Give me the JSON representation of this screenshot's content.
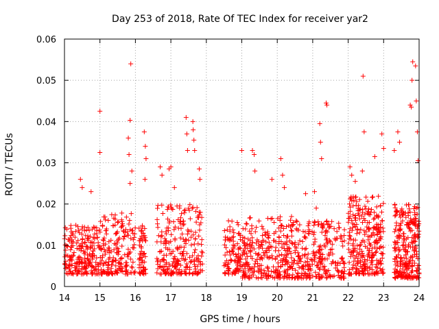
{
  "chart_data": {
    "type": "scatter",
    "title": "Day 253 of 2018, Rate Of TEC Index for receiver yar2",
    "xlabel": "GPS time / hours",
    "ylabel": "ROTI / TECUs",
    "xlim": [
      14,
      24
    ],
    "ylim": [
      0,
      0.06
    ],
    "xticks": [
      "14",
      "15",
      "16",
      "17",
      "18",
      "19",
      "20",
      "21",
      "22",
      "23",
      "24"
    ],
    "yticks": [
      "0",
      "0.01",
      "0.02",
      "0.03",
      "0.04",
      "0.05",
      "0.06"
    ],
    "grid": true,
    "marker": "+",
    "color": "#ff0000",
    "series": [
      {
        "name": "ROTI",
        "clusters": [
          {
            "x_start": 14.0,
            "x_end": 15.0,
            "y_min": 0.003,
            "y_max": 0.015,
            "count": 220
          },
          {
            "x_start": 15.0,
            "x_end": 16.0,
            "y_min": 0.003,
            "y_max": 0.018,
            "count": 200
          },
          {
            "x_start": 16.1,
            "x_end": 16.3,
            "y_min": 0.003,
            "y_max": 0.015,
            "count": 60
          },
          {
            "x_start": 16.6,
            "x_end": 17.9,
            "y_min": 0.003,
            "y_max": 0.02,
            "count": 260
          },
          {
            "x_start": 18.5,
            "x_end": 19.0,
            "y_min": 0.003,
            "y_max": 0.016,
            "count": 100
          },
          {
            "x_start": 19.0,
            "x_end": 20.5,
            "y_min": 0.002,
            "y_max": 0.017,
            "count": 300
          },
          {
            "x_start": 20.5,
            "x_end": 21.9,
            "y_min": 0.002,
            "y_max": 0.016,
            "count": 260
          },
          {
            "x_start": 22.0,
            "x_end": 23.0,
            "y_min": 0.003,
            "y_max": 0.022,
            "count": 300
          },
          {
            "x_start": 23.3,
            "x_end": 24.0,
            "y_min": 0.002,
            "y_max": 0.02,
            "count": 280
          }
        ],
        "spikes": [
          [
            14.45,
            0.026
          ],
          [
            14.5,
            0.024
          ],
          [
            14.75,
            0.023
          ],
          [
            15.0,
            0.0425
          ],
          [
            15.0,
            0.0325
          ],
          [
            15.8,
            0.036
          ],
          [
            15.82,
            0.032
          ],
          [
            15.85,
            0.0403
          ],
          [
            15.87,
            0.054
          ],
          [
            15.85,
            0.025
          ],
          [
            15.9,
            0.028
          ],
          [
            16.25,
            0.0375
          ],
          [
            16.28,
            0.034
          ],
          [
            16.3,
            0.031
          ],
          [
            16.27,
            0.026
          ],
          [
            16.7,
            0.029
          ],
          [
            16.75,
            0.027
          ],
          [
            16.95,
            0.0285
          ],
          [
            17.0,
            0.029
          ],
          [
            17.1,
            0.024
          ],
          [
            17.43,
            0.041
          ],
          [
            17.45,
            0.037
          ],
          [
            17.47,
            0.033
          ],
          [
            17.62,
            0.04
          ],
          [
            17.63,
            0.038
          ],
          [
            17.65,
            0.0355
          ],
          [
            17.67,
            0.033
          ],
          [
            17.8,
            0.0285
          ],
          [
            17.82,
            0.026
          ],
          [
            19.0,
            0.033
          ],
          [
            19.3,
            0.033
          ],
          [
            19.35,
            0.032
          ],
          [
            19.37,
            0.028
          ],
          [
            19.85,
            0.026
          ],
          [
            20.1,
            0.031
          ],
          [
            20.15,
            0.027
          ],
          [
            20.2,
            0.024
          ],
          [
            20.8,
            0.0225
          ],
          [
            21.05,
            0.023
          ],
          [
            21.1,
            0.019
          ],
          [
            21.2,
            0.0395
          ],
          [
            21.22,
            0.035
          ],
          [
            21.25,
            0.031
          ],
          [
            21.38,
            0.0445
          ],
          [
            21.4,
            0.044
          ],
          [
            22.05,
            0.029
          ],
          [
            22.1,
            0.027
          ],
          [
            22.2,
            0.0255
          ],
          [
            22.4,
            0.028
          ],
          [
            22.42,
            0.051
          ],
          [
            22.45,
            0.0375
          ],
          [
            22.75,
            0.0315
          ],
          [
            22.95,
            0.037
          ],
          [
            23.0,
            0.0335
          ],
          [
            23.3,
            0.033
          ],
          [
            23.4,
            0.0375
          ],
          [
            23.45,
            0.035
          ],
          [
            23.75,
            0.044
          ],
          [
            23.78,
            0.0435
          ],
          [
            23.8,
            0.05
          ],
          [
            23.82,
            0.0545
          ],
          [
            23.9,
            0.0535
          ],
          [
            23.92,
            0.045
          ],
          [
            23.95,
            0.0375
          ],
          [
            23.97,
            0.0305
          ]
        ]
      }
    ]
  }
}
